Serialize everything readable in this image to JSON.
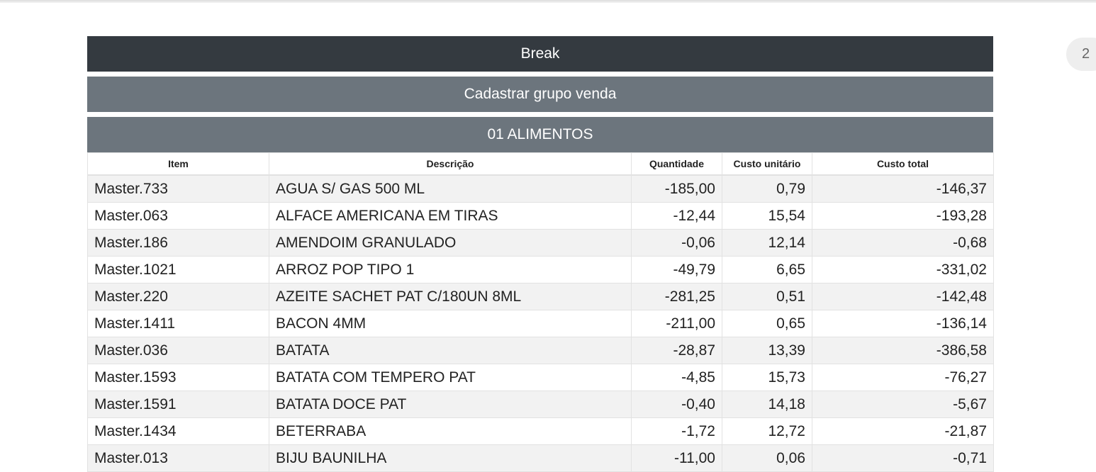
{
  "header": {
    "break_label": "Break",
    "group_label": "Cadastrar grupo venda",
    "category_label": "01 ALIMENTOS"
  },
  "page_badge": "2",
  "table": {
    "columns": [
      "Item",
      "Descrição",
      "Quantidade",
      "Custo unitário",
      "Custo total"
    ],
    "rows": [
      [
        "Master.733",
        "AGUA S/ GAS 500 ML",
        "-185,00",
        "0,79",
        "-146,37"
      ],
      [
        "Master.063",
        "ALFACE AMERICANA EM TIRAS",
        "-12,44",
        "15,54",
        "-193,28"
      ],
      [
        "Master.186",
        "AMENDOIM GRANULADO",
        "-0,06",
        "12,14",
        "-0,68"
      ],
      [
        "Master.1021",
        "ARROZ POP TIPO 1",
        "-49,79",
        "6,65",
        "-331,02"
      ],
      [
        "Master.220",
        "AZEITE SACHET PAT C/180UN 8ML",
        "-281,25",
        "0,51",
        "-142,48"
      ],
      [
        "Master.1411",
        "BACON 4MM",
        "-211,00",
        "0,65",
        "-136,14"
      ],
      [
        "Master.036",
        "BATATA",
        "-28,87",
        "13,39",
        "-386,58"
      ],
      [
        "Master.1593",
        "BATATA COM TEMPERO PAT",
        "-4,85",
        "15,73",
        "-76,27"
      ],
      [
        "Master.1591",
        "BATATA DOCE PAT",
        "-0,40",
        "14,18",
        "-5,67"
      ],
      [
        "Master.1434",
        "BETERRABA",
        "-1,72",
        "12,72",
        "-21,87"
      ],
      [
        "Master.013",
        "BIJU BAUNILHA",
        "-11,00",
        "0,06",
        "-0,71"
      ]
    ]
  }
}
